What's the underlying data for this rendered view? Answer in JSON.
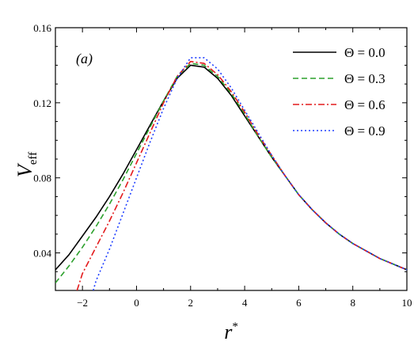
{
  "chart_data": {
    "type": "line",
    "panel_label": "(a)",
    "xlabel": "r*",
    "ylabel": "V_eff",
    "xlabel_parts": {
      "base": "r",
      "sup": "*"
    },
    "ylabel_parts": {
      "base": "V",
      "sub": "eff"
    },
    "xlim": [
      -3,
      10
    ],
    "ylim": [
      0.02,
      0.16
    ],
    "xticks": [
      -2,
      0,
      2,
      4,
      6,
      8,
      10
    ],
    "xtick_labels": [
      "−2",
      "0",
      "2",
      "4",
      "6",
      "8",
      "10"
    ],
    "yticks": [
      0.04,
      0.08,
      0.12,
      0.16
    ],
    "ytick_labels": [
      "0.04",
      "0.08",
      "0.12",
      "0.16"
    ],
    "legend_position": "top-right",
    "grid": false,
    "series": [
      {
        "name": "Θ = 0.0",
        "color": "#000000",
        "dash": "solid",
        "x": [
          -3,
          -2.5,
          -2,
          -1.5,
          -1,
          -0.5,
          0,
          0.5,
          1,
          1.5,
          2,
          2.5,
          3,
          3.5,
          4,
          4.5,
          5,
          5.5,
          6,
          6.5,
          7,
          7.5,
          8,
          8.5,
          9,
          9.5,
          10
        ],
        "y": [
          0.031,
          0.039,
          0.049,
          0.059,
          0.07,
          0.082,
          0.095,
          0.108,
          0.121,
          0.133,
          0.14,
          0.139,
          0.133,
          0.124,
          0.113,
          0.102,
          0.091,
          0.081,
          0.071,
          0.063,
          0.056,
          0.05,
          0.045,
          0.041,
          0.037,
          0.034,
          0.031
        ]
      },
      {
        "name": "Θ = 0.3",
        "color": "#2ca02c",
        "dash": "dashed",
        "x": [
          -3,
          -2.5,
          -2,
          -1.5,
          -1,
          -0.5,
          0,
          0.5,
          1,
          1.5,
          2,
          2.5,
          3,
          3.5,
          4,
          4.5,
          5,
          5.5,
          6,
          6.5,
          7,
          7.5,
          8,
          8.5,
          9,
          9.5,
          10
        ],
        "y": [
          0.024,
          0.033,
          0.043,
          0.054,
          0.066,
          0.079,
          0.093,
          0.107,
          0.121,
          0.134,
          0.141,
          0.14,
          0.134,
          0.125,
          0.114,
          0.102,
          0.091,
          0.081,
          0.071,
          0.063,
          0.056,
          0.05,
          0.045,
          0.041,
          0.037,
          0.034,
          0.031
        ]
      },
      {
        "name": "Θ = 0.6",
        "color": "#e31a1c",
        "dash": "dashdot",
        "x": [
          -2.2,
          -2,
          -1.5,
          -1,
          -0.5,
          0,
          0.5,
          1,
          1.5,
          2,
          2.5,
          3,
          3.5,
          4,
          4.5,
          5,
          5.5,
          6,
          6.5,
          7,
          7.5,
          8,
          8.5,
          9,
          9.5,
          10
        ],
        "y": [
          0.02,
          0.029,
          0.043,
          0.057,
          0.072,
          0.088,
          0.104,
          0.12,
          0.134,
          0.142,
          0.141,
          0.135,
          0.126,
          0.115,
          0.103,
          0.092,
          0.081,
          0.071,
          0.063,
          0.056,
          0.05,
          0.045,
          0.041,
          0.037,
          0.034,
          0.031
        ]
      },
      {
        "name": "Θ = 0.9",
        "color": "#1f3fff",
        "dash": "dotted",
        "x": [
          -1.6,
          -1.5,
          -1,
          -0.5,
          0,
          0.5,
          1,
          1.5,
          2,
          2.5,
          3,
          3.5,
          4,
          4.5,
          5,
          5.5,
          6,
          6.5,
          7,
          7.5,
          8,
          8.5,
          9,
          9.5,
          10
        ],
        "y": [
          0.02,
          0.025,
          0.042,
          0.061,
          0.08,
          0.099,
          0.117,
          0.133,
          0.144,
          0.144,
          0.138,
          0.128,
          0.116,
          0.104,
          0.092,
          0.081,
          0.071,
          0.063,
          0.056,
          0.05,
          0.045,
          0.041,
          0.037,
          0.034,
          0.031
        ]
      }
    ]
  }
}
